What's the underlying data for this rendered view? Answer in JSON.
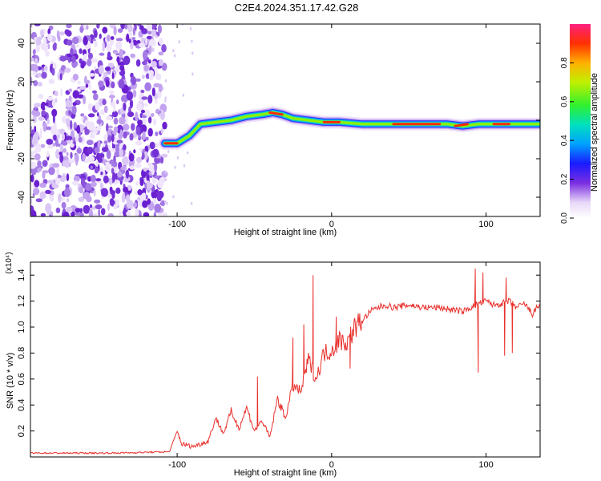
{
  "title": "C2E4.2024.351.17.42.G28",
  "chart_data": [
    {
      "type": "heatmap",
      "title": "C2E4.2024.351.17.42.G28",
      "xlabel": "Height of straight line (km)",
      "ylabel": "Frequency (Hz)",
      "xlim": [
        -195,
        135
      ],
      "ylim": [
        -50,
        50
      ],
      "xticks": [
        -100,
        0,
        100
      ],
      "xtick_labels": [
        "-100",
        "0",
        "100"
      ],
      "yticks": [
        -40,
        -20,
        0,
        20,
        40
      ],
      "ytick_labels": [
        "-40",
        "-20",
        "0",
        "20",
        "40"
      ],
      "noise_region_x": [
        -195,
        -108
      ],
      "ridge": {
        "x": [
          -108,
          -100,
          -92,
          -85,
          -75,
          -65,
          -55,
          -45,
          -38,
          -32,
          -25,
          -15,
          -5,
          5,
          20,
          40,
          60,
          75,
          85,
          95,
          105,
          115,
          135
        ],
        "freq": [
          -12,
          -12,
          -8,
          -2,
          -1,
          0,
          2,
          3,
          4,
          3,
          1,
          0,
          -1,
          -1,
          -2,
          -2,
          -2,
          -2,
          -3,
          -2,
          -2,
          -2,
          -2
        ]
      },
      "colorbar": {
        "label": "Normalized spectral amplitude",
        "range": [
          0,
          1
        ],
        "ticks": [
          "0.0",
          "0.2",
          "0.4",
          "0.6",
          "0.8"
        ]
      }
    },
    {
      "type": "line",
      "xlabel": "Height of straight line (km)",
      "ylabel": "SNR (10 * v/v)",
      "y_multiplier": "(x10⁴)",
      "xlim": [
        -195,
        135
      ],
      "ylim": [
        0,
        1.5
      ],
      "xticks": [
        -100,
        0,
        100
      ],
      "xtick_labels": [
        "-100",
        "0",
        "100"
      ],
      "yticks": [
        0.2,
        0.4,
        0.6,
        0.8,
        1.0,
        1.2,
        1.4
      ],
      "ytick_labels": [
        "0.2",
        "0.4",
        "0.6",
        "0.8",
        "1.0",
        "1.2",
        "1.4"
      ],
      "series": [
        {
          "name": "SNR",
          "color": "#e8302c",
          "x": [
            -195,
            -140,
            -105,
            -100,
            -97,
            -90,
            -80,
            -75,
            -70,
            -65,
            -60,
            -55,
            -50,
            -45,
            -40,
            -35,
            -30,
            -25,
            -20,
            -15,
            -10,
            -5,
            0,
            5,
            10,
            15,
            20,
            25,
            30,
            35,
            40,
            50,
            60,
            70,
            80,
            85,
            90,
            95,
            100,
            105,
            110,
            115,
            120,
            125,
            130,
            135
          ],
          "y": [
            0.03,
            0.03,
            0.04,
            0.2,
            0.1,
            0.08,
            0.12,
            0.3,
            0.18,
            0.35,
            0.22,
            0.38,
            0.2,
            0.28,
            0.15,
            0.45,
            0.3,
            0.55,
            0.5,
            0.75,
            0.6,
            0.8,
            0.82,
            0.9,
            0.88,
            1.0,
            1.05,
            1.12,
            1.15,
            1.17,
            1.15,
            1.17,
            1.15,
            1.15,
            1.13,
            1.12,
            1.15,
            1.18,
            1.2,
            1.17,
            1.18,
            1.2,
            1.15,
            1.18,
            1.1,
            1.18
          ],
          "spikes": [
            {
              "x": -48,
              "y": 0.62
            },
            {
              "x": -25,
              "y": 0.92
            },
            {
              "x": -12,
              "y": 1.4
            },
            {
              "x": -18,
              "y": 1.02
            },
            {
              "x": 3,
              "y": 1.08
            },
            {
              "x": 12,
              "y": 0.68
            },
            {
              "x": 93,
              "y": 1.45
            },
            {
              "x": 95,
              "y": 0.65
            },
            {
              "x": 98,
              "y": 1.42
            },
            {
              "x": 113,
              "y": 1.38
            },
            {
              "x": 112,
              "y": 0.78
            },
            {
              "x": 117,
              "y": 0.8
            }
          ]
        }
      ]
    }
  ]
}
